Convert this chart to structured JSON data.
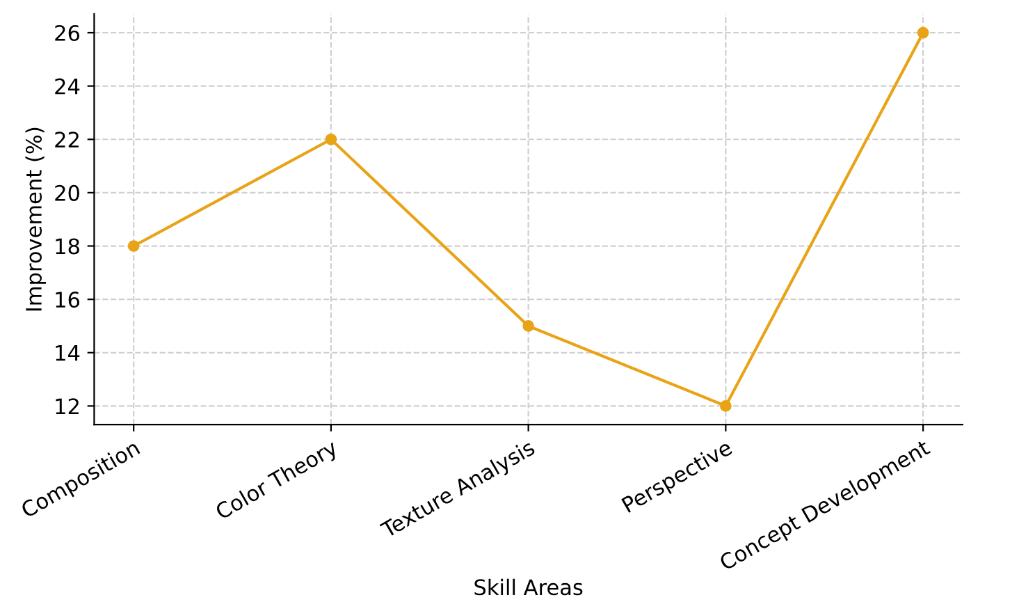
{
  "chart_data": {
    "type": "line",
    "xlabel": "Skill Areas",
    "ylabel": "Improvement (%)",
    "categories": [
      "Composition",
      "Color Theory",
      "Texture Analysis",
      "Perspective",
      "Concept Development"
    ],
    "series": [
      {
        "color": "#e8a317",
        "values": [
          18,
          22,
          15,
          12,
          26
        ]
      }
    ],
    "ylim": [
      11.3,
      26.7
    ],
    "yticks": [
      12,
      14,
      16,
      18,
      20,
      22,
      24,
      26
    ],
    "grid": true,
    "marker": "circle",
    "line_style": "solid"
  }
}
